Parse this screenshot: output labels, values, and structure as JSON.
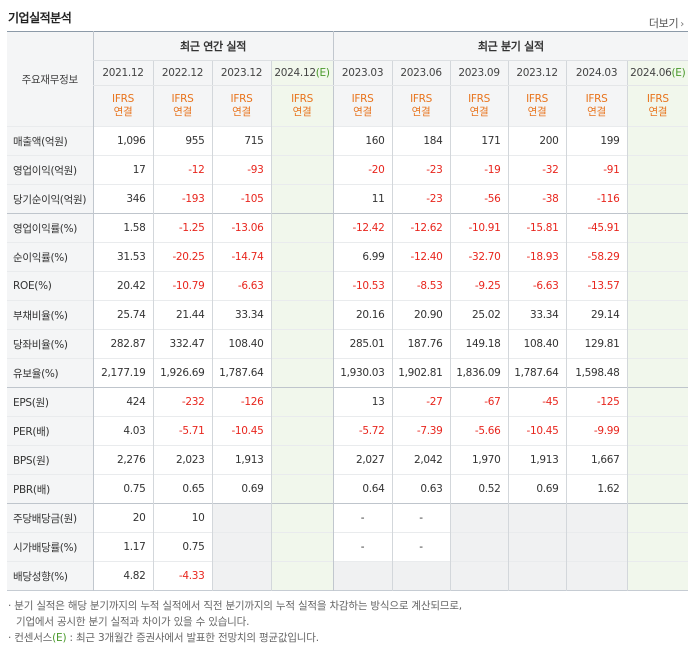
{
  "title": "기업실적분석",
  "more_label": "더보기",
  "header": {
    "row_label": "주요재무정보",
    "annual_group": "최근 연간 실적",
    "quarter_group": "최근 분기 실적",
    "ifrs_line1": "IFRS",
    "ifrs_line2": "연결",
    "estimate_mark": "(E)",
    "annual_periods": [
      "2021.12",
      "2022.12",
      "2023.12",
      "2024.12"
    ],
    "quarter_periods": [
      "2023.03",
      "2023.06",
      "2023.09",
      "2023.12",
      "2024.03",
      "2024.06"
    ]
  },
  "rows": [
    {
      "label": "매출액(억원)",
      "values": [
        "1,096",
        "955",
        "715",
        "",
        "160",
        "184",
        "171",
        "200",
        "199",
        ""
      ]
    },
    {
      "label": "영업이익(억원)",
      "values": [
        "17",
        "-12",
        "-93",
        "",
        "-20",
        "-23",
        "-19",
        "-32",
        "-91",
        ""
      ]
    },
    {
      "label": "당기순이익(억원)",
      "values": [
        "346",
        "-193",
        "-105",
        "",
        "11",
        "-23",
        "-56",
        "-38",
        "-116",
        ""
      ]
    },
    {
      "label": "영업이익률(%)",
      "values": [
        "1.58",
        "-1.25",
        "-13.06",
        "",
        "-12.42",
        "-12.62",
        "-10.91",
        "-15.81",
        "-45.91",
        ""
      ]
    },
    {
      "label": "순이익률(%)",
      "values": [
        "31.53",
        "-20.25",
        "-14.74",
        "",
        "6.99",
        "-12.40",
        "-32.70",
        "-18.93",
        "-58.29",
        ""
      ]
    },
    {
      "label": "ROE(%)",
      "values": [
        "20.42",
        "-10.79",
        "-6.63",
        "",
        "-10.53",
        "-8.53",
        "-9.25",
        "-6.63",
        "-13.57",
        ""
      ]
    },
    {
      "label": "부채비율(%)",
      "values": [
        "25.74",
        "21.44",
        "33.34",
        "",
        "20.16",
        "20.90",
        "25.02",
        "33.34",
        "29.14",
        ""
      ]
    },
    {
      "label": "당좌비율(%)",
      "values": [
        "282.87",
        "332.47",
        "108.40",
        "",
        "285.01",
        "187.76",
        "149.18",
        "108.40",
        "129.81",
        ""
      ]
    },
    {
      "label": "유보율(%)",
      "values": [
        "2,177.19",
        "1,926.69",
        "1,787.64",
        "",
        "1,930.03",
        "1,902.81",
        "1,836.09",
        "1,787.64",
        "1,598.48",
        ""
      ]
    },
    {
      "label": "EPS(원)",
      "values": [
        "424",
        "-232",
        "-126",
        "",
        "13",
        "-27",
        "-67",
        "-45",
        "-125",
        ""
      ]
    },
    {
      "label": "PER(배)",
      "values": [
        "4.03",
        "-5.71",
        "-10.45",
        "",
        "-5.72",
        "-7.39",
        "-5.66",
        "-10.45",
        "-9.99",
        ""
      ]
    },
    {
      "label": "BPS(원)",
      "values": [
        "2,276",
        "2,023",
        "1,913",
        "",
        "2,027",
        "2,042",
        "1,970",
        "1,913",
        "1,667",
        ""
      ]
    },
    {
      "label": "PBR(배)",
      "values": [
        "0.75",
        "0.65",
        "0.69",
        "",
        "0.64",
        "0.63",
        "0.52",
        "0.69",
        "1.62",
        ""
      ]
    },
    {
      "label": "주당배당금(원)",
      "values": [
        "20",
        "10",
        "",
        "",
        "-",
        "-",
        "",
        "",
        "",
        ""
      ]
    },
    {
      "label": "시가배당률(%)",
      "values": [
        "1.17",
        "0.75",
        "",
        "",
        "-",
        "-",
        "",
        "",
        "",
        ""
      ]
    },
    {
      "label": "배당성향(%)",
      "values": [
        "4.82",
        "-4.33",
        "",
        "",
        "",
        "",
        "",
        "",
        "",
        ""
      ]
    }
  ],
  "notes": {
    "line1": "분기 실적은 해당 분기까지의 누적 실적에서 직전 분기까지의 누적 실적을 차감하는 방식으로 계산되므로,",
    "line2": "기업에서 공시한 분기 실적과 차이가 있을 수 있습니다.",
    "line3_prefix": "컨센서스",
    "line3_mark": "(E)",
    "line3_suffix": " : 최근 3개월간 증권사에서 발표한 전망치의 평균값입니다."
  },
  "colors": {
    "ifrs": "#e8741d",
    "negative": "#e8261e",
    "estimate_bg": "#f1f7ec",
    "estimate_text": "#4a9a2c",
    "header_bg": "#f4f5f6"
  }
}
